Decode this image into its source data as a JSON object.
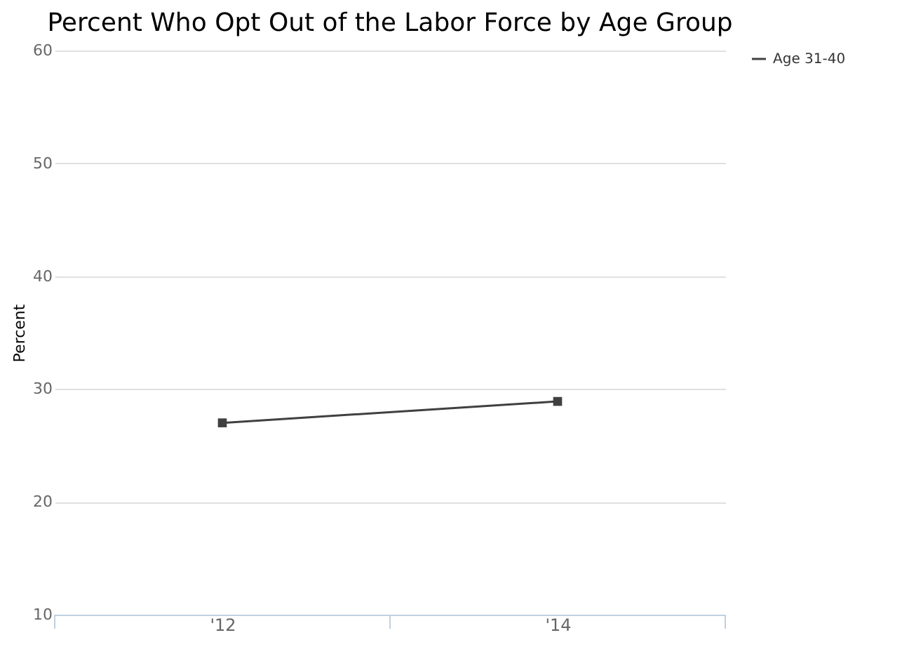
{
  "chart_data": {
    "type": "line",
    "title": "Percent Who Opt Out of the Labor Force by Age Group",
    "ylabel": "Percent",
    "categories": [
      "'12",
      "'14"
    ],
    "series": [
      {
        "name": "Age 31-40",
        "color": "#404040",
        "values": [
          27.0,
          28.9
        ]
      }
    ],
    "ylim": [
      10,
      60
    ],
    "yticks": [
      10,
      20,
      30,
      40,
      50,
      60
    ],
    "grid": "y",
    "legend": "right",
    "marker": "square",
    "line_style": "solid"
  }
}
